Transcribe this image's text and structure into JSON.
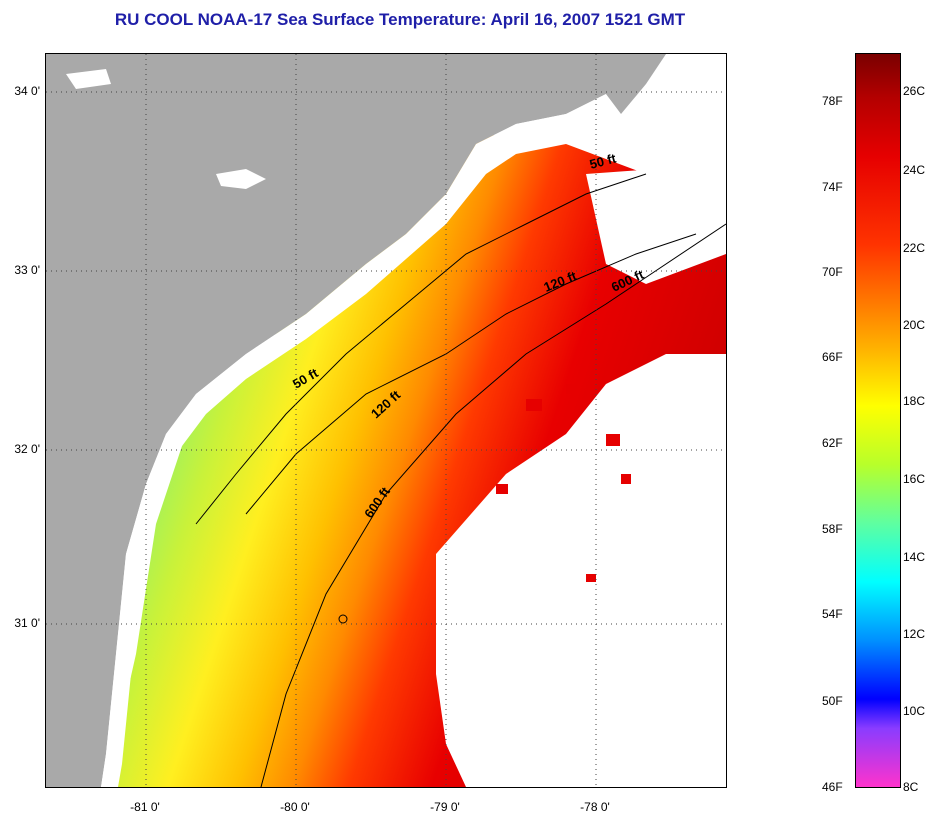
{
  "title": "RU COOL  NOAA-17  Sea Surface Temperature:  April 16, 2007 1521 GMT",
  "latitude_labels": [
    "34 0'",
    "33 0'",
    "32 0'",
    "31 0'"
  ],
  "longitude_labels": [
    "-81 0'",
    "-80 0'",
    "-79 0'",
    "-78 0'"
  ],
  "depth_contour_labels": [
    "50 ft",
    "120 ft",
    "600 ft",
    "50 ft",
    "120 ft",
    "600 ft"
  ],
  "colorbar": {
    "fahrenheit_labels": [
      "78F",
      "74F",
      "70F",
      "66F",
      "62F",
      "58F",
      "54F",
      "50F",
      "46F"
    ],
    "celsius_labels": [
      "26C",
      "24C",
      "22C",
      "20C",
      "18C",
      "16C",
      "14C",
      "12C",
      "10C",
      "8C"
    ]
  },
  "colors": {
    "land": "#a9a9a9",
    "title": "#1f1fa8",
    "warm": "#e60000",
    "mid": "#ffff00",
    "cool": "#5fffa0"
  }
}
